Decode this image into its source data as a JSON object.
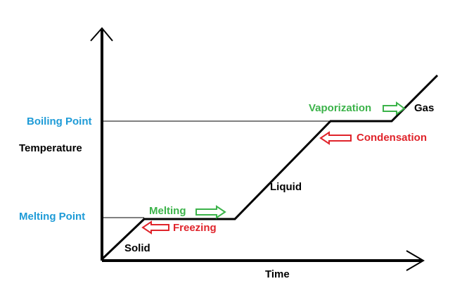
{
  "diagram": {
    "y_axis_label": "Temperature",
    "x_axis_label": "Time",
    "boiling_point_label": "Boiling Point",
    "melting_point_label": "Melting Point",
    "phases": {
      "solid": "Solid",
      "liquid": "Liquid",
      "gas": "Gas"
    },
    "transitions": {
      "melting": "Melting",
      "freezing": "Freezing",
      "vaporization": "Vaporization",
      "condensation": "Condensation"
    },
    "colors": {
      "axis": "#000000",
      "point_label": "#1e9bd7",
      "forward_transition": "#3cb34a",
      "reverse_transition": "#e0242b",
      "text": "#000000"
    }
  }
}
